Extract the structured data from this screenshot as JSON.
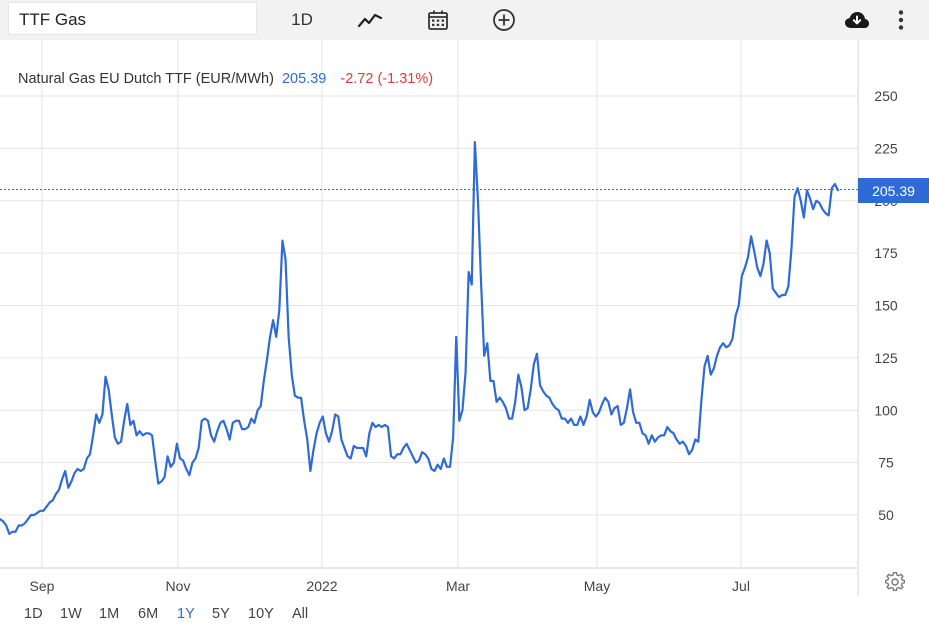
{
  "toolbar": {
    "symbol": "TTF Gas",
    "interval": "1D",
    "icons": [
      "line-chart-icon",
      "calendar-icon",
      "add-circle-icon",
      "cloud-download-icon",
      "more-vert-icon"
    ]
  },
  "legend": {
    "name": "Natural Gas EU Dutch TTF (EUR/MWh)",
    "price": "205.39",
    "change": "-2.72 (-1.31%)"
  },
  "last_price_label": "205.39",
  "periods": [
    {
      "label": "1D",
      "active": false
    },
    {
      "label": "1W",
      "active": false
    },
    {
      "label": "1M",
      "active": false
    },
    {
      "label": "6M",
      "active": false
    },
    {
      "label": "1Y",
      "active": true
    },
    {
      "label": "5Y",
      "active": false
    },
    {
      "label": "10Y",
      "active": false
    },
    {
      "label": "All",
      "active": false
    }
  ],
  "colors": {
    "line": "#2f6bd6",
    "negative": "#e03c3c",
    "grid": "#e6e6e6",
    "toolbar_bg": "#f2f2f2"
  },
  "chart_data": {
    "type": "line",
    "title": "Natural Gas EU Dutch TTF (EUR/MWh)",
    "ylim": [
      25,
      275
    ],
    "yticks": [
      50,
      75,
      100,
      125,
      150,
      175,
      200,
      225,
      250
    ],
    "xticks": [
      "Sep",
      "Nov",
      "2022",
      "Mar",
      "May",
      "Jul"
    ],
    "last_value": 205.39,
    "grid": true,
    "series": [
      {
        "values": [
          48,
          47,
          45,
          41,
          42,
          42,
          45,
          45,
          46,
          48,
          50,
          50,
          51,
          52,
          52,
          54,
          56,
          57,
          60,
          62,
          67,
          71,
          63,
          66,
          70,
          72,
          71,
          72,
          77,
          79,
          88,
          98,
          94,
          98,
          116,
          110,
          98,
          87,
          84,
          85,
          95,
          103,
          93,
          95,
          88,
          90,
          88,
          89,
          89,
          88,
          76,
          65,
          66,
          68,
          78,
          73,
          75,
          84,
          77,
          76,
          72,
          69,
          75,
          77,
          82,
          95,
          96,
          95,
          88,
          85,
          90,
          94,
          95,
          91,
          86,
          94,
          95,
          95,
          91,
          91,
          92,
          96,
          94,
          100,
          102,
          114,
          124,
          135,
          143,
          135,
          148,
          181,
          172,
          135,
          117,
          107,
          106,
          106,
          95,
          86,
          71,
          81,
          89,
          94,
          97,
          89,
          85,
          90,
          98,
          97,
          86,
          82,
          78,
          77,
          83,
          82,
          82,
          82,
          78,
          89,
          94,
          92,
          93,
          92,
          93,
          92,
          78,
          77,
          79,
          79,
          82,
          84,
          81,
          78,
          75,
          76,
          80,
          79,
          77,
          72,
          71,
          74,
          72,
          77,
          73,
          73,
          87,
          135,
          95,
          100,
          118,
          166,
          160,
          228,
          200,
          161,
          126,
          132,
          114,
          114,
          104,
          106,
          104,
          101,
          96,
          96,
          104,
          117,
          111,
          100,
          101,
          110,
          122,
          127,
          112,
          109,
          107,
          106,
          103,
          101,
          100,
          96,
          96,
          94,
          96,
          93,
          93,
          97,
          93,
          97,
          105,
          99,
          97,
          99,
          103,
          106,
          104,
          98,
          101,
          102,
          93,
          94,
          101,
          110,
          99,
          94,
          94,
          89,
          88,
          84,
          88,
          85,
          87,
          88,
          88,
          92,
          90,
          89,
          86,
          84,
          85,
          83,
          79,
          81,
          86,
          85,
          105,
          121,
          126,
          117,
          120,
          126,
          130,
          132,
          130,
          131,
          134,
          145,
          150,
          164,
          168,
          173,
          183,
          176,
          168,
          164,
          170,
          181,
          175,
          158,
          156,
          154,
          155,
          155,
          159,
          177,
          202,
          206,
          200,
          192,
          205,
          201,
          196,
          200,
          199,
          196,
          194,
          193,
          206,
          208,
          205
        ]
      }
    ]
  }
}
